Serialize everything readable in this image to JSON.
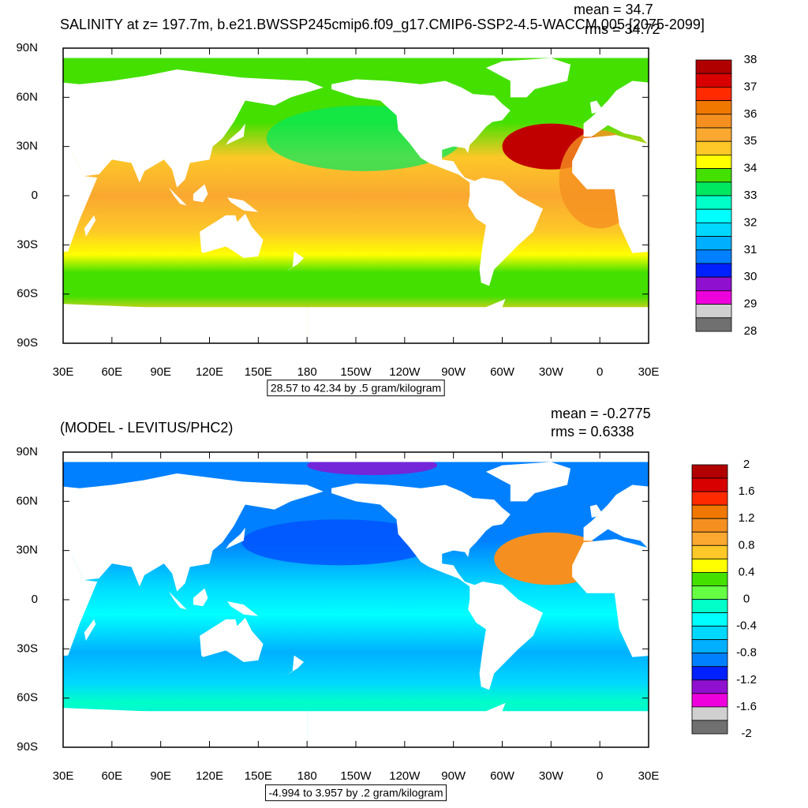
{
  "panels": [
    {
      "title": "SALINITY at z= 197.7m, b.e21.BWSSP245cmip6.f09_g17.CMIP6-SSP2-4.5-WACCM.005 [2075-2099]",
      "mean": "mean = 34.7",
      "rms": "rms = 34.72",
      "lat_labels": [
        "90N",
        "60N",
        "30N",
        "0",
        "30S",
        "60S",
        "90S"
      ],
      "lon_labels": [
        "30E",
        "60E",
        "90E",
        "120E",
        "150E",
        "180",
        "150W",
        "120W",
        "90W",
        "60W",
        "30W",
        "0",
        "30E"
      ],
      "colorbar": {
        "labels": [
          "38",
          "37",
          "36",
          "35",
          "34",
          "33",
          "32",
          "31",
          "30",
          "29",
          "28"
        ],
        "colors": [
          "#b00000",
          "#d80000",
          "#ff2a00",
          "#f07800",
          "#f59020",
          "#faa830",
          "#fdc828",
          "#ffff00",
          "#44e000",
          "#00e860",
          "#00ffc8",
          "#00ffff",
          "#00d8ff",
          "#00b0ff",
          "#0080ff",
          "#0020ff",
          "#9010d0",
          "#ee00dd",
          "#d0d0d0",
          "#707070"
        ]
      },
      "info": "28.57 to 42.34 by .5 gram/kilogram"
    },
    {
      "title": "(MODEL - LEVITUS/PHC2)",
      "mean": "mean = -0.2775",
      "rms": "rms = 0.6338",
      "lat_labels": [
        "90N",
        "60N",
        "30N",
        "0",
        "30S",
        "60S",
        "90S"
      ],
      "lon_labels": [
        "30E",
        "60E",
        "90E",
        "120E",
        "150E",
        "180",
        "150W",
        "120W",
        "90W",
        "60W",
        "30W",
        "0",
        "30E"
      ],
      "colorbar": {
        "labels": [
          "2",
          "1.6",
          "1.2",
          "0.8",
          "0.4",
          "0",
          "-0.4",
          "-0.8",
          "-1.2",
          "-1.6",
          "-2"
        ],
        "colors": [
          "#b00000",
          "#d80000",
          "#ff2a00",
          "#f07800",
          "#f59020",
          "#faa830",
          "#fdc828",
          "#ffff00",
          "#44e000",
          "#66ff44",
          "#00ffc8",
          "#00ffff",
          "#00d8ff",
          "#00b0ff",
          "#0080ff",
          "#0020ff",
          "#9010d0",
          "#ee00dd",
          "#d0d0d0",
          "#707070"
        ]
      },
      "info": "-4.994 to 3.957 by .2 gram/kilogram"
    }
  ]
}
